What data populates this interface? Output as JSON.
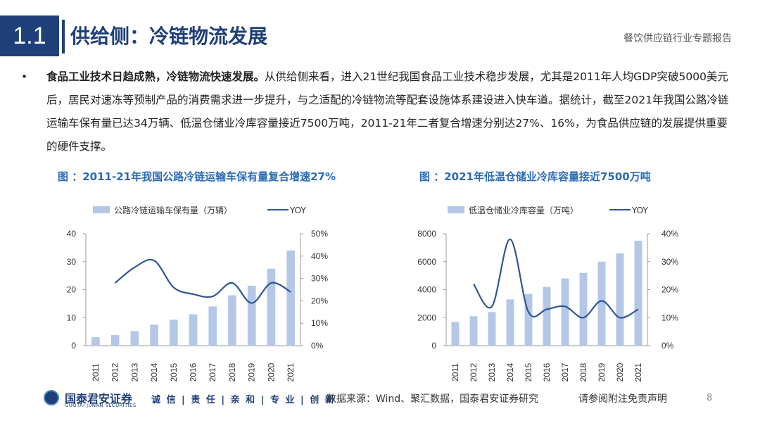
{
  "header": {
    "section_number": "1.1",
    "title": "供给侧：冷链物流发展",
    "report_name": "餐饮供应链行业专题报告"
  },
  "body": {
    "bullet": "•",
    "lead": "食品工业技术日趋成熟，冷链物流快速发展。",
    "text": "从供给侧来看，进入21世纪我国食品工业技术稳步发展，尤其是2011年人均GDP突破5000美元后，居民对速冻等预制产品的消费需求进一步提升，与之适配的冷链物流等配套设施体系建设进入快车道。据统计，截至2021年我国公路冷链运输车保有量已达34万辆、低温仓储业冷库容量接近7500万吨，2011-21年二者复合增速分别达27%、16%，为食品供应链的发展提供重要的硬件支撑。"
  },
  "charts_text": {
    "left_title": "图 ：2011-21年我国公路冷链运输车保有量复合增速27%",
    "right_title": "图 ：2021年低温仓储业冷库容量接近7500万吨"
  },
  "footer": {
    "logo_cn": "国泰君安证券",
    "logo_en": "GUOTAI JUNAN SECURITIES",
    "motto": "诚 信 | 责 任 | 亲 和 | 专 业 | 创 新",
    "source": "数据来源：Wind、聚汇数据，国泰君安证券研究",
    "disclaimer": "请参阅附注免责声明",
    "page": "8"
  },
  "colors": {
    "navy": "#1f3f78",
    "title_blue": "#2a6ab8",
    "bar": "#b4c7e7",
    "line": "#2f5597"
  },
  "chart_data": [
    {
      "type": "bar",
      "categories": [
        "2011",
        "2012",
        "2013",
        "2014",
        "2015",
        "2016",
        "2017",
        "2018",
        "2019",
        "2020",
        "2021"
      ],
      "series": [
        {
          "name": "公路冷链运输车保有量（万辆）",
          "type": "bar",
          "axis": "left",
          "values": [
            3.0,
            3.8,
            5.2,
            7.5,
            9.3,
            11.2,
            14.0,
            18.0,
            21.4,
            27.5,
            34.0
          ]
        },
        {
          "name": "YOY",
          "type": "line",
          "axis": "right",
          "values": [
            null,
            28,
            35,
            38,
            26,
            23,
            22,
            28,
            19,
            28,
            24
          ]
        }
      ],
      "ylim_left": [
        0,
        40
      ],
      "yticks_left": [
        "0",
        "10",
        "20",
        "30",
        "40"
      ],
      "ylim_right": [
        0,
        50
      ],
      "yticks_right": [
        "0%",
        "10%",
        "20%",
        "30%",
        "40%",
        "50%"
      ],
      "legend": "top"
    },
    {
      "type": "bar",
      "categories": [
        "2011",
        "2012",
        "2013",
        "2014",
        "2015",
        "2016",
        "2017",
        "2018",
        "2019",
        "2020",
        "2021"
      ],
      "series": [
        {
          "name": "低温仓储业冷库容量（万吨）",
          "type": "bar",
          "axis": "left",
          "values": [
            1700,
            2100,
            2400,
            3300,
            3700,
            4200,
            4800,
            5200,
            6000,
            6600,
            7500
          ]
        },
        {
          "name": "YOY",
          "type": "line",
          "axis": "right",
          "values": [
            null,
            22,
            14,
            38,
            12,
            13,
            14,
            10,
            16,
            10,
            13
          ]
        }
      ],
      "ylim_left": [
        0,
        8000
      ],
      "yticks_left": [
        "0",
        "2000",
        "4000",
        "6000",
        "8000"
      ],
      "ylim_right": [
        0,
        40
      ],
      "yticks_right": [
        "0%",
        "10%",
        "20%",
        "30%",
        "40%"
      ],
      "legend": "top"
    }
  ]
}
